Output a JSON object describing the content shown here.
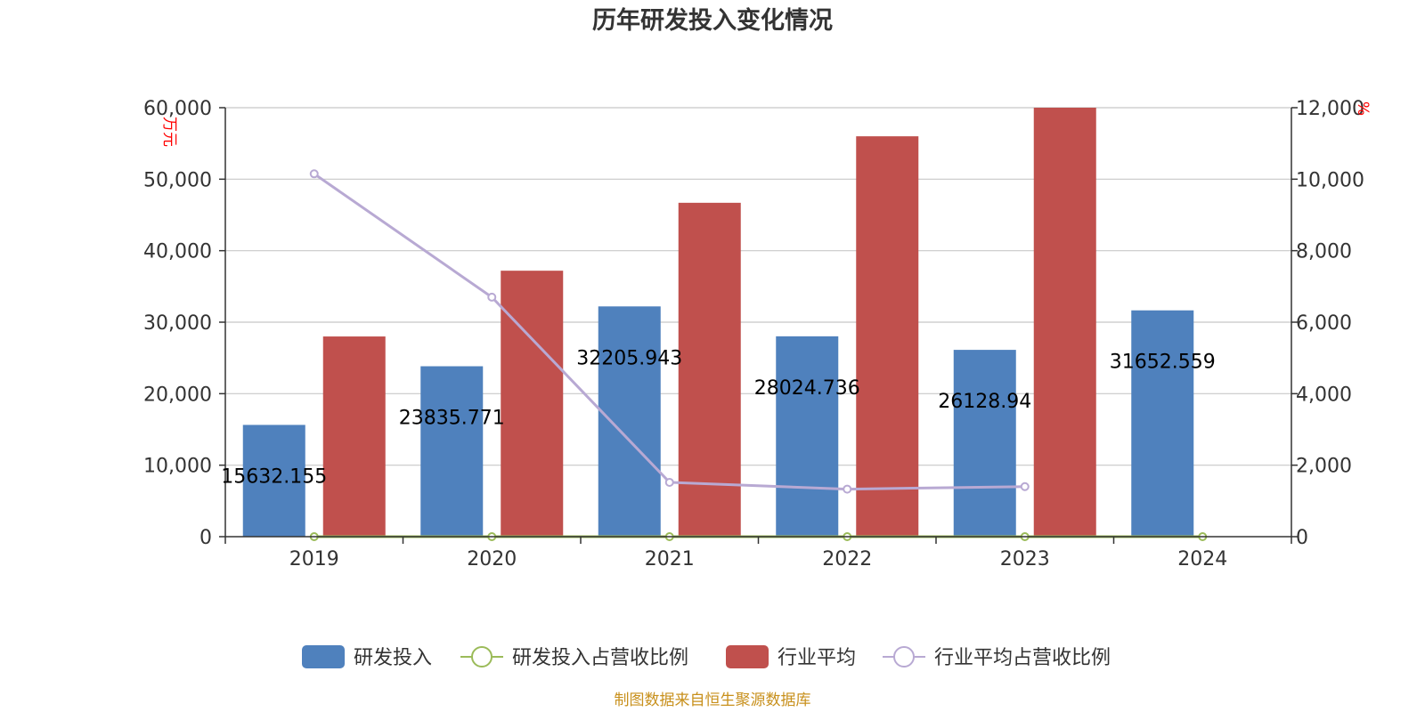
{
  "chart_data": {
    "type": "bar",
    "title": "历年研发投入变化情况",
    "categories": [
      "2019",
      "2020",
      "2021",
      "2022",
      "2023",
      "2024"
    ],
    "left_axis": {
      "unit": "万元",
      "ylim": [
        0,
        60000
      ],
      "ticks": [
        "0",
        "10,000",
        "20,000",
        "30,000",
        "40,000",
        "50,000",
        "60,000"
      ]
    },
    "right_axis": {
      "unit": "%",
      "ylim": [
        0,
        12000
      ],
      "ticks": [
        "0",
        "2,000",
        "4,000",
        "6,000",
        "8,000",
        "10,000",
        "12,000"
      ]
    },
    "series": [
      {
        "name": "研发投入",
        "kind": "bar",
        "axis": "left",
        "color": "#4f81bd",
        "values": [
          15632.155,
          23835.771,
          32205.943,
          28024.736,
          26128.94,
          31652.559
        ],
        "labels": [
          "15632.155",
          "23835.771",
          "32205.943",
          "28024.736",
          "26128.94",
          "31652.559"
        ]
      },
      {
        "name": "研发投入占营收比例",
        "kind": "line",
        "axis": "right",
        "color": "#9bbb59",
        "values": [
          0,
          0,
          0,
          0,
          0,
          0
        ]
      },
      {
        "name": "行业平均",
        "kind": "bar",
        "axis": "left",
        "color": "#c0504d",
        "values": [
          28000,
          37200,
          46700,
          56000,
          60000,
          null
        ]
      },
      {
        "name": "行业平均占营收比例",
        "kind": "line",
        "axis": "right",
        "color": "#b8a9d3",
        "values": [
          10150,
          6700,
          1520,
          1330,
          1400,
          null
        ]
      }
    ],
    "grid": true,
    "legend_position": "bottom"
  },
  "source": "制图数据来自恒生聚源数据库"
}
